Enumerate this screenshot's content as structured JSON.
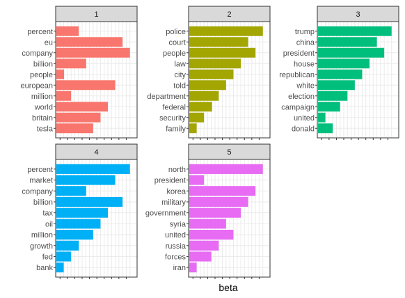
{
  "chart_data": [
    {
      "type": "bar",
      "orientation": "horizontal",
      "facet": "1",
      "categories": [
        "percent",
        "eu",
        "company",
        "billion",
        "people",
        "european",
        "million",
        "world",
        "britain",
        "tesla"
      ],
      "values": [
        0.0061,
        0.018,
        0.02,
        0.0081,
        0.0021,
        0.016,
        0.004,
        0.014,
        0.012,
        0.01
      ],
      "color": "#F8766D"
    },
    {
      "type": "bar",
      "orientation": "horizontal",
      "facet": "2",
      "categories": [
        "police",
        "court",
        "people",
        "law",
        "city",
        "told",
        "department",
        "federal",
        "security",
        "family"
      ],
      "values": [
        0.02,
        0.016,
        0.018,
        0.014,
        0.012,
        0.01,
        0.008,
        0.0062,
        0.004,
        0.002
      ],
      "color": "#A3A500"
    },
    {
      "type": "bar",
      "orientation": "horizontal",
      "facet": "3",
      "categories": [
        "trump",
        "china",
        "president",
        "house",
        "republican",
        "white",
        "election",
        "campaign",
        "united",
        "donald"
      ],
      "values": [
        0.02,
        0.016,
        0.018,
        0.014,
        0.012,
        0.01,
        0.008,
        0.006,
        0.002,
        0.004
      ],
      "color": "#00BF7D"
    },
    {
      "type": "bar",
      "orientation": "horizontal",
      "facet": "4",
      "categories": [
        "percent",
        "market",
        "company",
        "billion",
        "tax",
        "oil",
        "million",
        "growth",
        "fed",
        "bank"
      ],
      "values": [
        0.02,
        0.016,
        0.0081,
        0.018,
        0.014,
        0.012,
        0.01,
        0.0061,
        0.004,
        0.002
      ],
      "color": "#00B0F6"
    },
    {
      "type": "bar",
      "orientation": "horizontal",
      "facet": "5",
      "categories": [
        "north",
        "president",
        "korea",
        "military",
        "government",
        "syria",
        "united",
        "russia",
        "forces",
        "iran"
      ],
      "values": [
        0.02,
        0.004,
        0.018,
        0.016,
        0.014,
        0.01,
        0.012,
        0.008,
        0.006,
        0.002
      ],
      "color": "#E76BF3"
    }
  ],
  "xlabel": "beta",
  "ylabel": "",
  "xlim": [
    0,
    0.021
  ],
  "grid": true
}
